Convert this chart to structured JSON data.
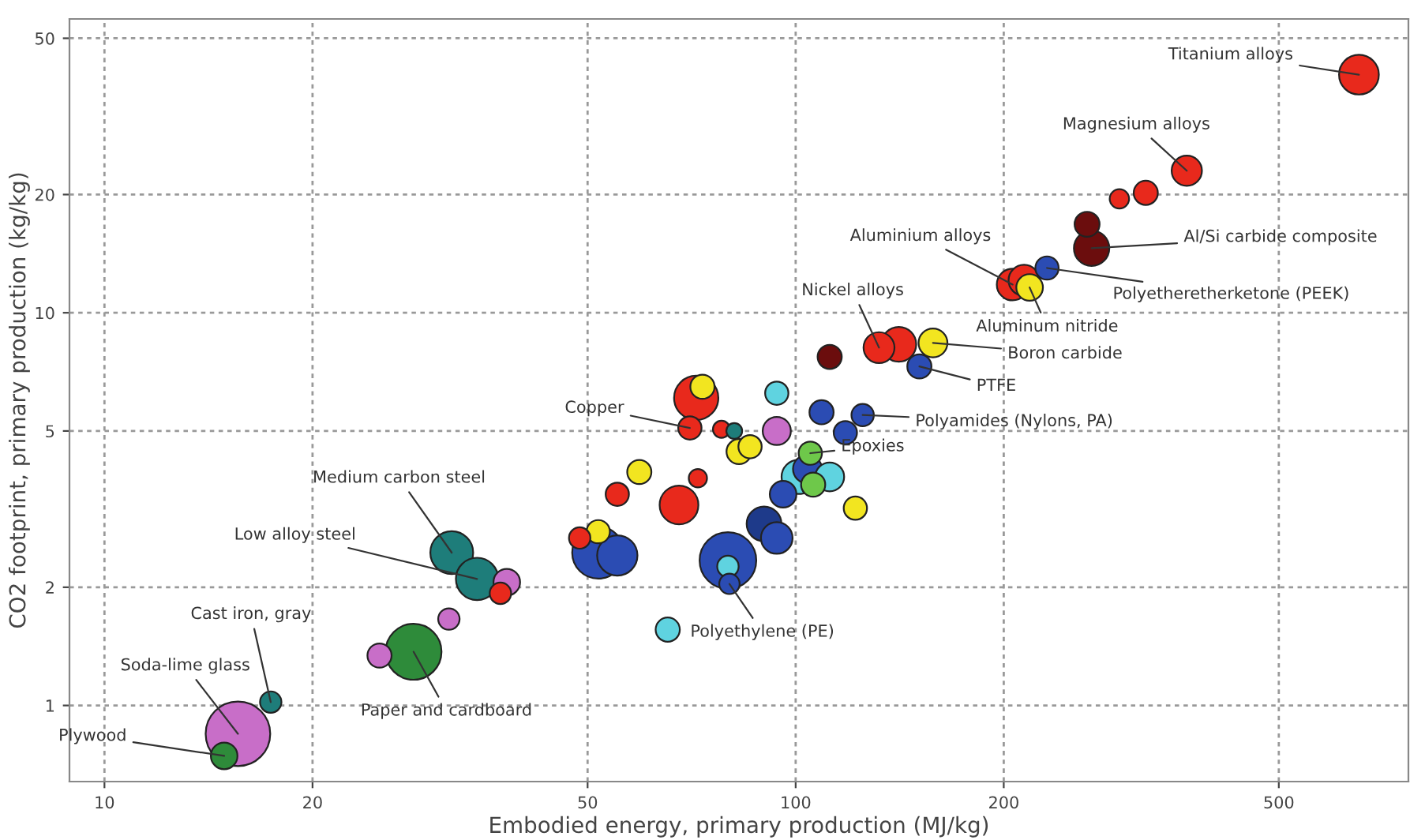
{
  "chart_data": {
    "type": "bubble",
    "xlabel": "Embodied energy, primary production (MJ/kg)",
    "ylabel": "CO2 footprint, primary production (kg/kg)",
    "log": "xy",
    "grid": true,
    "xlim": [
      8.9,
      770
    ],
    "ylim": [
      0.64,
      56
    ],
    "xticks": [
      10,
      20,
      50,
      100,
      200,
      500
    ],
    "yticks": [
      1,
      2,
      5,
      10,
      20,
      50
    ],
    "x": [
      14.9,
      15.6,
      17.4,
      25.0,
      28.0,
      31.5,
      31.8,
      34.6,
      38.2,
      37.4,
      51.8,
      55.2,
      48.7,
      51.8,
      55.2,
      59.4,
      67.8,
      72.2,
      71.8,
      73.3,
      70.3,
      78.1,
      81.5,
      82.8,
      85.9,
      93.9,
      93.9,
      109,
      125,
      118,
      105,
      104,
      101,
      112,
      106,
      95.9,
      122,
      90.0,
      93.9,
      79.8,
      79.8,
      80.2,
      65.3,
      112,
      132,
      141,
      158,
      151,
      206,
      214,
      218,
      231,
      268,
      264,
      294,
      321,
      368,
      653
    ],
    "values": [
      0.744,
      0.847,
      1.02,
      1.34,
      1.37,
      1.66,
      2.45,
      2.1,
      2.06,
      1.93,
      2.45,
      2.41,
      2.67,
      2.77,
      3.45,
      3.93,
      3.24,
      3.79,
      6.07,
      6.48,
      5.09,
      5.05,
      5.0,
      4.43,
      4.56,
      5.0,
      6.24,
      5.58,
      5.49,
      4.95,
      4.39,
      4.0,
      3.82,
      3.82,
      3.65,
      3.45,
      3.18,
      2.9,
      2.67,
      2.34,
      2.26,
      2.04,
      1.56,
      7.72,
      8.15,
      8.31,
      8.38,
      7.3,
      11.8,
      12.1,
      11.6,
      13.0,
      14.6,
      16.8,
      19.5,
      20.2,
      23.0,
      40.4
    ],
    "sizes": [
      0.17,
      1,
      0.11,
      0.14,
      0.75,
      0.11,
      0.44,
      0.43,
      0.17,
      0.11,
      0.65,
      0.39,
      0.11,
      0.13,
      0.13,
      0.14,
      0.36,
      0.08,
      0.47,
      0.14,
      0.13,
      0.07,
      0.06,
      0.15,
      0.13,
      0.19,
      0.13,
      0.14,
      0.12,
      0.13,
      0.13,
      0.2,
      0.28,
      0.2,
      0.14,
      0.17,
      0.13,
      0.29,
      0.24,
      0.77,
      0.11,
      0.1,
      0.14,
      0.14,
      0.23,
      0.29,
      0.2,
      0.14,
      0.24,
      0.23,
      0.17,
      0.13,
      0.3,
      0.15,
      0.09,
      0.14,
      0.22,
      0.38
    ],
    "colors": [
      "#2e8b3a",
      "#c86ec8",
      "#1e7d7a",
      "#c86ec8",
      "#2e8b3a",
      "#c86ec8",
      "#1e7d7a",
      "#1e7d7a",
      "#c86ec8",
      "#e8291c",
      "#2b4cb3",
      "#2b4cb3",
      "#e8291c",
      "#f2e520",
      "#e8291c",
      "#f2e520",
      "#e8291c",
      "#e8291c",
      "#e8291c",
      "#f2e520",
      "#e8291c",
      "#e8291c",
      "#1e7d7a",
      "#f2e520",
      "#f2e520",
      "#c86ec8",
      "#5fd3e0",
      "#2b4cb3",
      "#2b4cb3",
      "#2b4cb3",
      "#6ec84a",
      "#2b4cb3",
      "#5fd3e0",
      "#5fd3e0",
      "#6ec84a",
      "#2b4cb3",
      "#f2e520",
      "#1e3a8a",
      "#2b4cb3",
      "#2b4cb3",
      "#5fd3e0",
      "#2b4cb3",
      "#5fd3e0",
      "#6b0d0d",
      "#e8291c",
      "#e8291c",
      "#f2e520",
      "#2b4cb3",
      "#e8291c",
      "#e8291c",
      "#f2e520",
      "#2b4cb3",
      "#6b0d0d",
      "#6b0d0d",
      "#e8291c",
      "#e8291c",
      "#e8291c",
      "#e8291c"
    ],
    "annotations": [
      {
        "text": "Titanium alloys",
        "x": 653,
        "y": 40.4
      },
      {
        "text": "Magnesium alloys",
        "x": 368,
        "y": 23.0
      },
      {
        "text": "Al/Si carbide composite",
        "x": 268,
        "y": 14.6
      },
      {
        "text": "Polyetheretherketone (PEEK)",
        "x": 231,
        "y": 13.0
      },
      {
        "text": "Aluminium alloys",
        "x": 206,
        "y": 11.8
      },
      {
        "text": "Aluminum nitride",
        "x": 218,
        "y": 11.6
      },
      {
        "text": "Nickel alloys",
        "x": 132,
        "y": 8.15
      },
      {
        "text": "Boron carbide",
        "x": 158,
        "y": 8.38
      },
      {
        "text": "PTFE",
        "x": 151,
        "y": 7.3
      },
      {
        "text": "Polyamides (Nylons, PA)",
        "x": 125,
        "y": 5.49
      },
      {
        "text": "Copper",
        "x": 70.3,
        "y": 5.09
      },
      {
        "text": "Epoxies",
        "x": 105,
        "y": 4.39
      },
      {
        "text": "Polyethylene (PE)",
        "x": 80.2,
        "y": 2.04
      },
      {
        "text": "Medium carbon steel",
        "x": 31.8,
        "y": 2.45
      },
      {
        "text": "Low alloy steel",
        "x": 34.6,
        "y": 2.1
      },
      {
        "text": "Cast iron, gray",
        "x": 17.4,
        "y": 1.02
      },
      {
        "text": "Soda-lime glass",
        "x": 15.6,
        "y": 0.847
      },
      {
        "text": "Paper and cardboard",
        "x": 28.0,
        "y": 1.37
      },
      {
        "text": "Plywood",
        "x": 14.9,
        "y": 0.744
      }
    ]
  }
}
